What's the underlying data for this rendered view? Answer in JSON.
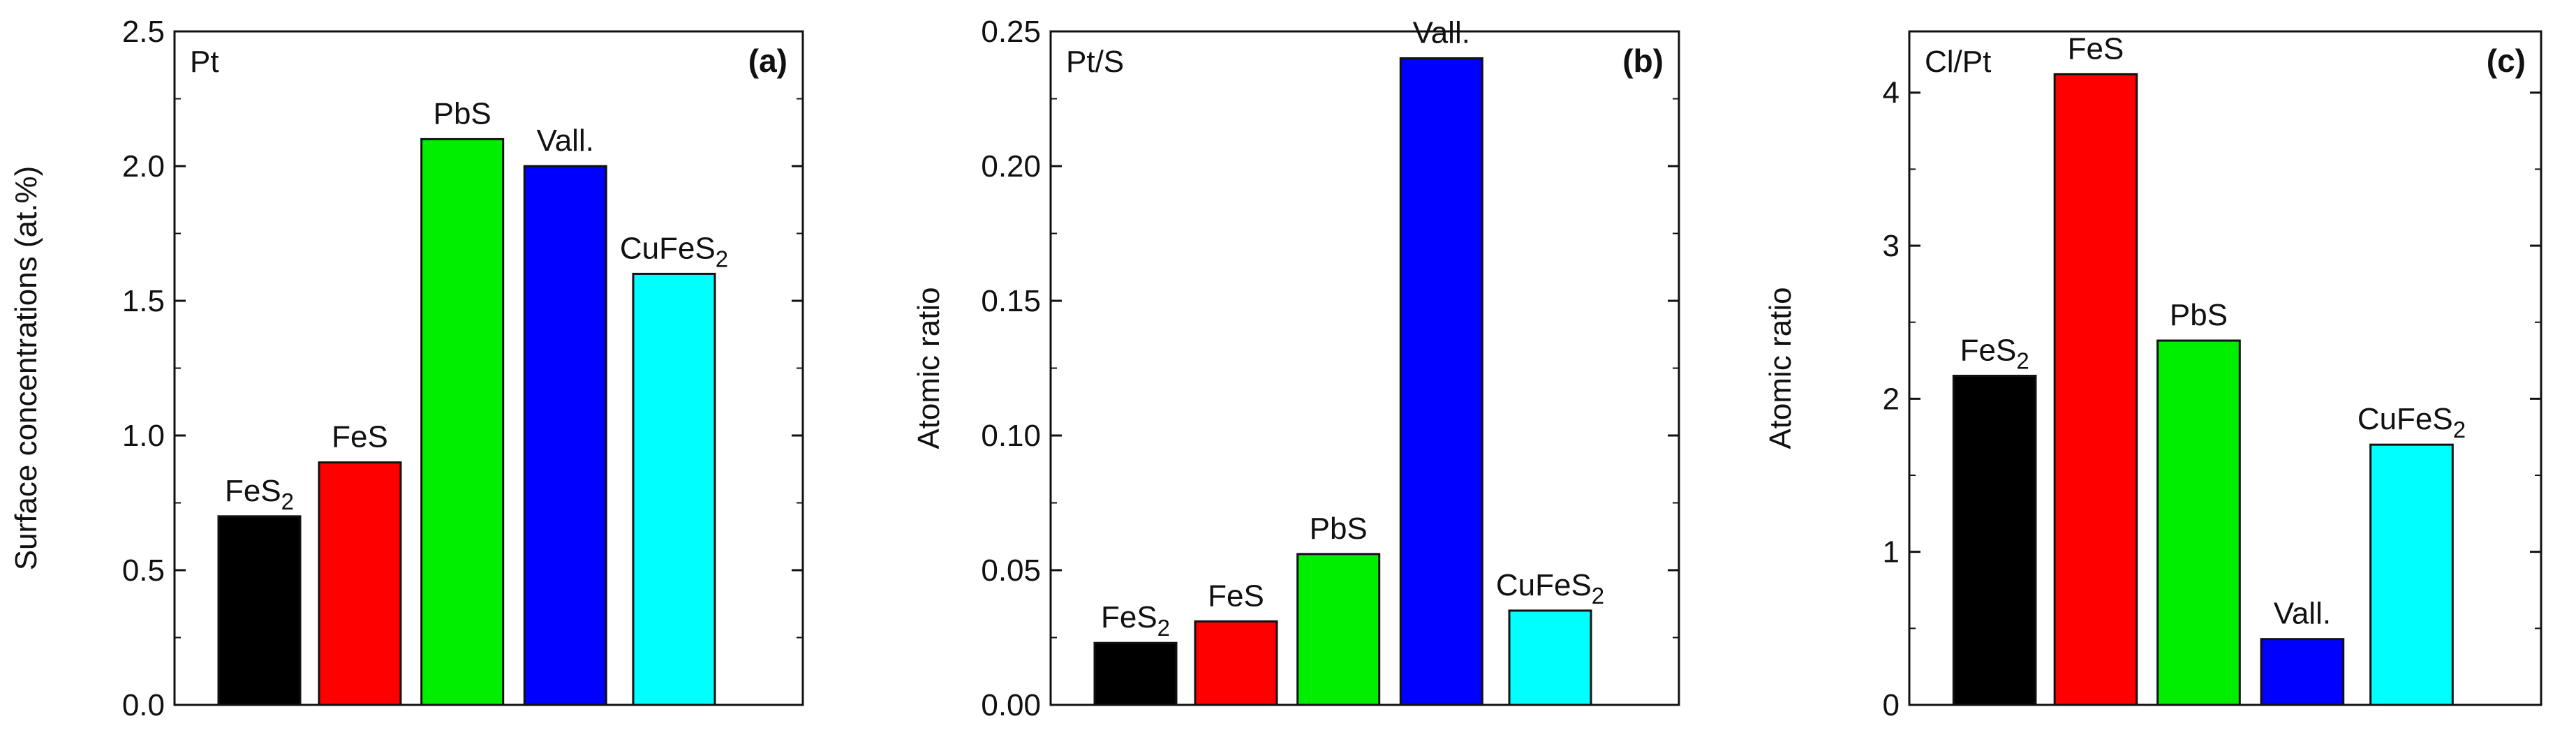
{
  "chart_data": [
    {
      "type": "bar",
      "panel_label": "(a)",
      "inset_label": "Pt",
      "ylabel": "Surface concentrations (at.%)",
      "ylim": [
        0,
        2.5
      ],
      "yticks": [
        "0.0",
        "0.5",
        "1.0",
        "1.5",
        "2.0",
        "2.5"
      ],
      "y_tick_values": [
        0,
        0.5,
        1.0,
        1.5,
        2.0,
        2.5
      ],
      "categories": [
        {
          "base": "FeS",
          "sub": "2"
        },
        {
          "base": "FeS",
          "sub": ""
        },
        {
          "base": "PbS",
          "sub": ""
        },
        {
          "base": "Vall.",
          "sub": ""
        },
        {
          "base": "CuFeS",
          "sub": "2"
        }
      ],
      "values": [
        0.7,
        0.9,
        2.1,
        2.0,
        1.6
      ],
      "colors": [
        "#000000",
        "#ff0000",
        "#00ee00",
        "#0000ff",
        "#00ffff"
      ]
    },
    {
      "type": "bar",
      "panel_label": "(b)",
      "inset_label": "Pt/S",
      "ylabel": "Atomic ratio",
      "ylim": [
        0,
        0.25
      ],
      "yticks": [
        "0.00",
        "0.05",
        "0.10",
        "0.15",
        "0.20",
        "0.25"
      ],
      "y_tick_values": [
        0,
        0.05,
        0.1,
        0.15,
        0.2,
        0.25
      ],
      "categories": [
        {
          "base": "FeS",
          "sub": "2"
        },
        {
          "base": "FeS",
          "sub": ""
        },
        {
          "base": "PbS",
          "sub": ""
        },
        {
          "base": "Vall.",
          "sub": ""
        },
        {
          "base": "CuFeS",
          "sub": "2"
        }
      ],
      "values": [
        0.023,
        0.031,
        0.056,
        0.24,
        0.035
      ],
      "colors": [
        "#000000",
        "#ff0000",
        "#00ee00",
        "#0000ff",
        "#00ffff"
      ]
    },
    {
      "type": "bar",
      "panel_label": "(c)",
      "inset_label": "Cl/Pt",
      "ylabel": "Atomic ratio",
      "ylim": [
        0,
        4.4
      ],
      "yticks": [
        "0",
        "1",
        "2",
        "3",
        "4"
      ],
      "y_tick_values": [
        0,
        1,
        2,
        3,
        4
      ],
      "categories": [
        {
          "base": "FeS",
          "sub": "2"
        },
        {
          "base": "FeS",
          "sub": ""
        },
        {
          "base": "PbS",
          "sub": ""
        },
        {
          "base": "Vall.",
          "sub": ""
        },
        {
          "base": "CuFeS",
          "sub": "2"
        }
      ],
      "values": [
        2.15,
        4.12,
        2.38,
        0.43,
        1.7
      ],
      "colors": [
        "#000000",
        "#ff0000",
        "#00ee00",
        "#0000ff",
        "#00ffff"
      ]
    }
  ]
}
